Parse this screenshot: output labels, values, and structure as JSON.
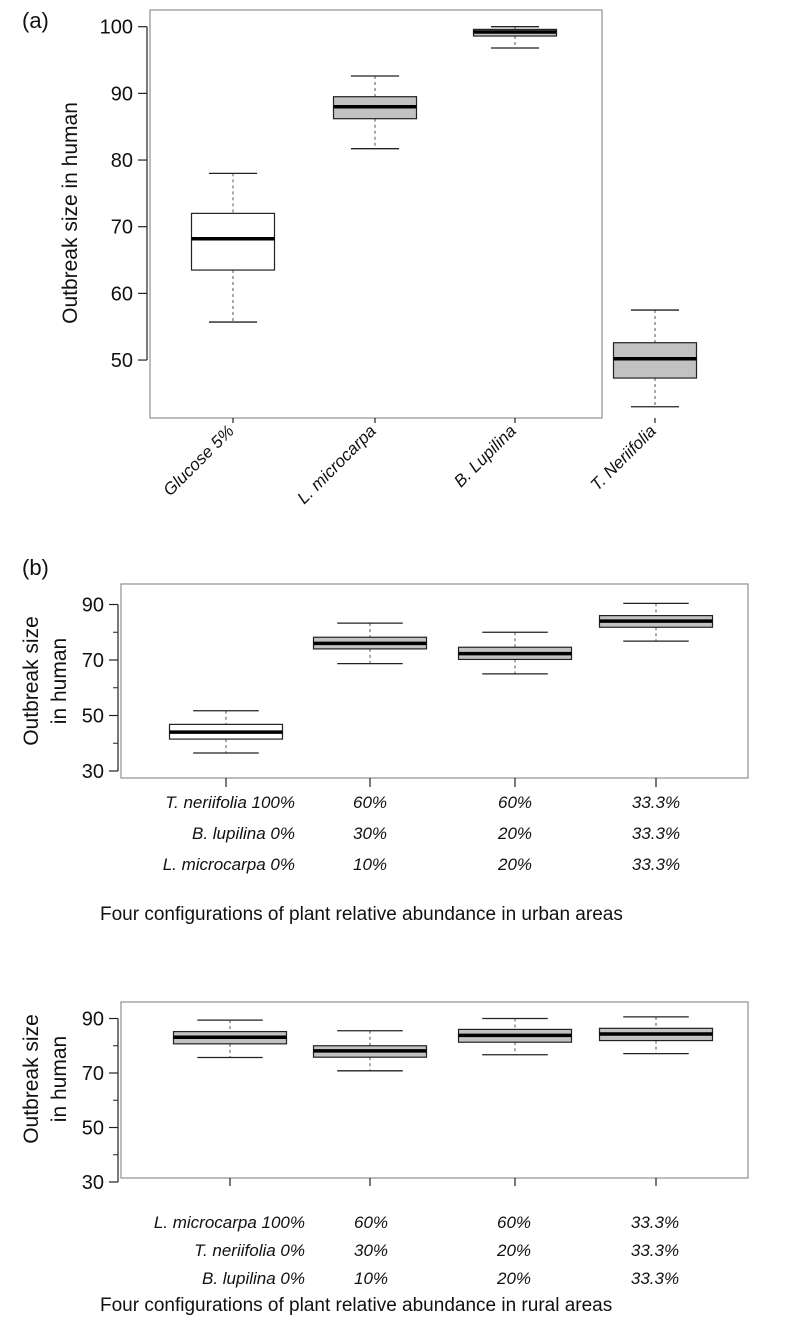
{
  "panel_a_label": "(a)",
  "panel_b_label": "(b)",
  "chart_data": [
    {
      "type": "box",
      "title": "",
      "ylabel": "Outbreak size in human",
      "xlabel": "",
      "ylim": [
        41,
        101
      ],
      "yticks": [
        "50",
        "60",
        "70",
        "80",
        "90",
        "100"
      ],
      "grid": false,
      "categories": [
        "Glucose 5%",
        "L. microcarpa",
        "B. Lupilina",
        "T. Neriifolia"
      ],
      "boxes": [
        {
          "whisker_low": 55.7,
          "q1": 63.5,
          "median": 68.2,
          "q3": 72.0,
          "whisker_high": 78.0,
          "fill": "#ffffff"
        },
        {
          "whisker_low": 81.7,
          "q1": 86.2,
          "median": 88.0,
          "q3": 89.5,
          "whisker_high": 92.6,
          "fill": "#c2c2c2"
        },
        {
          "whisker_low": 96.8,
          "q1": 98.6,
          "median": 99.2,
          "q3": 99.6,
          "whisker_high": 100.0,
          "fill": "#c2c2c2"
        },
        {
          "whisker_low": 43.0,
          "q1": 47.3,
          "median": 50.2,
          "q3": 52.6,
          "whisker_high": 57.5,
          "fill": "#c2c2c2"
        }
      ]
    },
    {
      "type": "box",
      "title": "",
      "ylabel_line1": "Outbreak size",
      "ylabel_line2": "in human",
      "xlabel": "Four configurations of plant relative abundance in urban areas",
      "ylim": [
        28,
        92
      ],
      "yticks": [
        "30",
        "50",
        "70",
        "90"
      ],
      "grid": false,
      "configuration_rows": [
        [
          "T. neriifolia 100%",
          "60%",
          "60%",
          "33.3%"
        ],
        [
          "B. lupilina 0%",
          "30%",
          "20%",
          "33.3%"
        ],
        [
          "L. microcarpa 0%",
          "10%",
          "20%",
          "33.3%"
        ]
      ],
      "boxes": [
        {
          "whisker_low": 36.5,
          "q1": 41.5,
          "median": 44.0,
          "q3": 46.8,
          "whisker_high": 51.7,
          "fill": "#ffffff"
        },
        {
          "whisker_low": 68.7,
          "q1": 74.0,
          "median": 76.0,
          "q3": 78.2,
          "whisker_high": 83.3,
          "fill": "#c2c2c2"
        },
        {
          "whisker_low": 65.0,
          "q1": 70.2,
          "median": 72.3,
          "q3": 74.6,
          "whisker_high": 80.0,
          "fill": "#c2c2c2"
        },
        {
          "whisker_low": 76.8,
          "q1": 81.8,
          "median": 84.0,
          "q3": 86.0,
          "whisker_high": 90.4,
          "fill": "#c2c2c2"
        }
      ]
    },
    {
      "type": "box",
      "title": "",
      "ylabel_line1": "Outbreak size",
      "ylabel_line2": "in human",
      "xlabel": "Four configurations of plant relative abundance in rural areas",
      "ylim": [
        28,
        92
      ],
      "yticks": [
        "30",
        "50",
        "70",
        "90"
      ],
      "grid": false,
      "configuration_rows": [
        [
          "L. microcarpa 100%",
          "60%",
          "60%",
          "33.3%"
        ],
        [
          "T. neriifolia 0%",
          "30%",
          "20%",
          "33.3%"
        ],
        [
          "B. lupilina 0%",
          "10%",
          "20%",
          "33.3%"
        ]
      ],
      "boxes": [
        {
          "whisker_low": 75.7,
          "q1": 80.7,
          "median": 83.1,
          "q3": 85.2,
          "whisker_high": 89.4,
          "fill": "#c2c2c2"
        },
        {
          "whisker_low": 70.8,
          "q1": 75.8,
          "median": 78.1,
          "q3": 80.0,
          "whisker_high": 85.5,
          "fill": "#c2c2c2"
        },
        {
          "whisker_low": 76.7,
          "q1": 81.3,
          "median": 83.8,
          "q3": 86.0,
          "whisker_high": 90.0,
          "fill": "#c2c2c2"
        },
        {
          "whisker_low": 77.1,
          "q1": 81.9,
          "median": 84.3,
          "q3": 86.4,
          "whisker_high": 90.6,
          "fill": "#c2c2c2"
        }
      ]
    }
  ]
}
